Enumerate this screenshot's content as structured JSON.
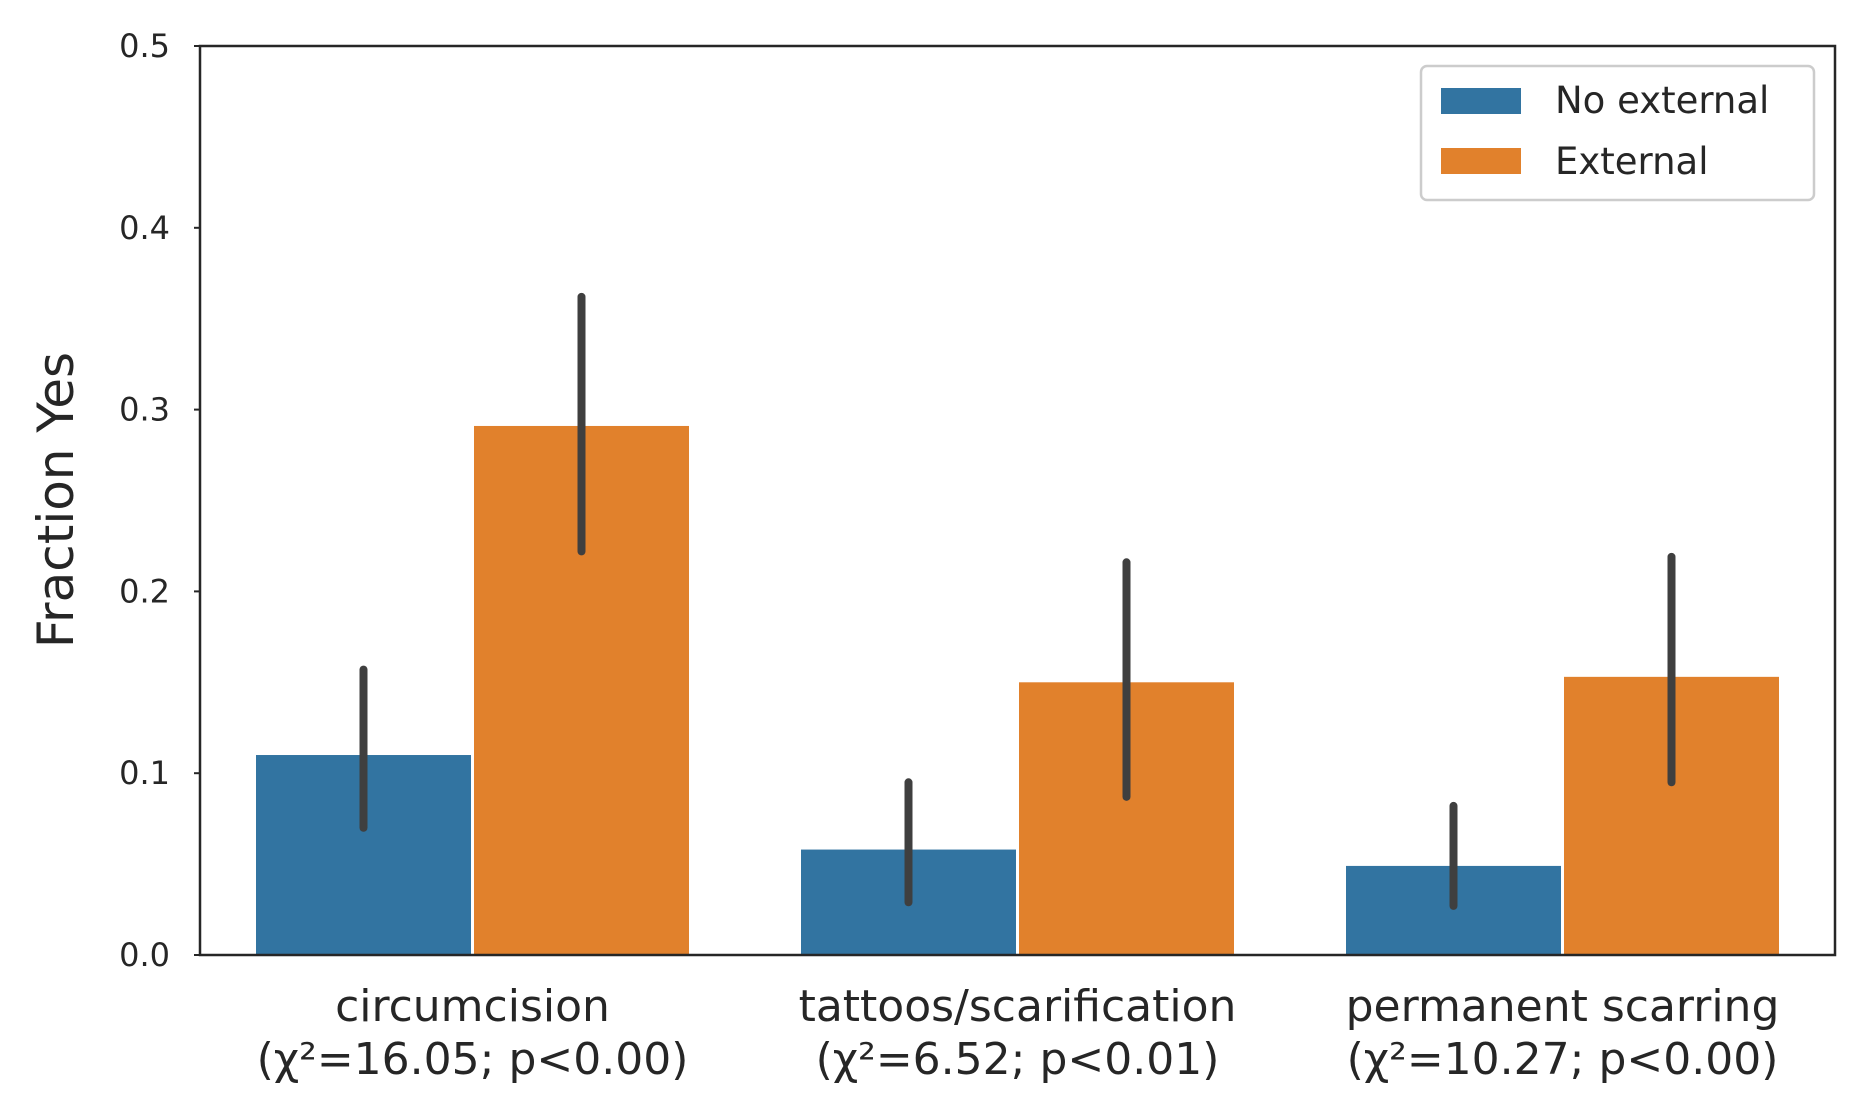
{
  "chart_data": {
    "type": "bar",
    "title": "",
    "xlabel": "",
    "ylabel": "Fraction Yes",
    "ylim": [
      0,
      0.5
    ],
    "yticks": [
      "0.0",
      "0.1",
      "0.2",
      "0.3",
      "0.4",
      "0.5"
    ],
    "grid": false,
    "legend_position": "top-right",
    "categories": [
      [
        "circumcision",
        "(χ²=16.05; p<0.00)"
      ],
      [
        "tattoos/scarification",
        "(χ²=6.52; p<0.01)"
      ],
      [
        "permanent scarring",
        "(χ²=10.27; p<0.00)"
      ]
    ],
    "series": [
      {
        "name": "No external",
        "color": "#3274a1",
        "values": [
          0.11,
          0.058,
          0.049
        ],
        "ci_low": [
          0.07,
          0.029,
          0.027
        ],
        "ci_high": [
          0.157,
          0.095,
          0.082
        ]
      },
      {
        "name": "External",
        "color": "#e1812c",
        "values": [
          0.291,
          0.15,
          0.153
        ],
        "ci_low": [
          0.222,
          0.087,
          0.095
        ],
        "ci_high": [
          0.362,
          0.216,
          0.219
        ]
      }
    ],
    "errorbar_color": "#3f3f3f"
  }
}
